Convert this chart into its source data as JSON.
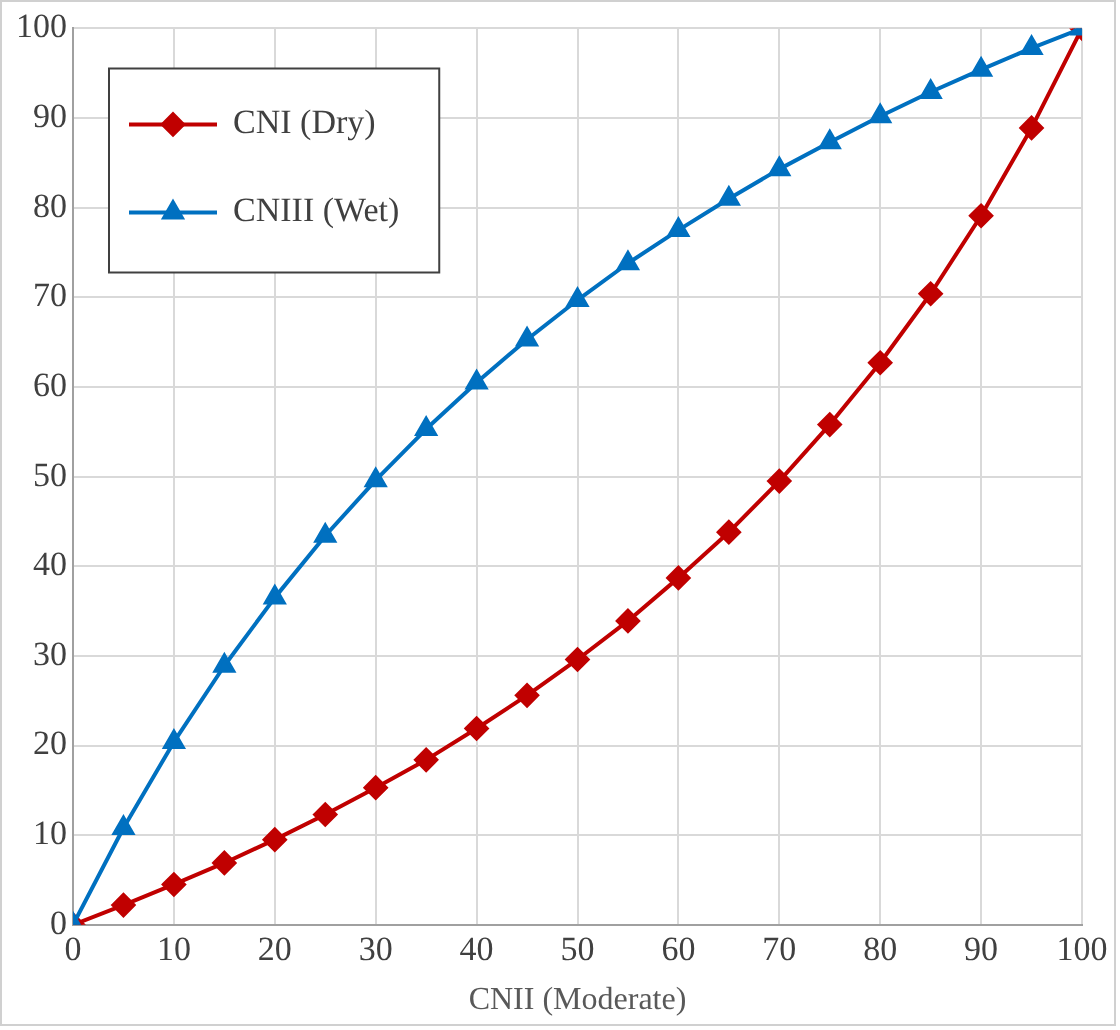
{
  "chart_data": {
    "type": "line",
    "xlabel": "CNII (Moderate)",
    "x": [
      0,
      5,
      10,
      15,
      20,
      25,
      30,
      35,
      40,
      45,
      50,
      55,
      60,
      65,
      70,
      75,
      80,
      85,
      90,
      95,
      100
    ],
    "series": [
      {
        "name": "CNI (Dry)",
        "color": "#c00000",
        "marker": "diamond",
        "values": [
          0,
          2.2,
          4.5,
          6.9,
          9.5,
          12.3,
          15.3,
          18.4,
          21.9,
          25.6,
          29.6,
          33.9,
          38.7,
          43.8,
          49.5,
          55.8,
          62.7,
          70.4,
          79.1,
          88.9,
          100
        ]
      },
      {
        "name": "CNIII (Wet)",
        "color": "#0070c0",
        "marker": "triangle",
        "values": [
          0,
          10.8,
          20.4,
          28.9,
          36.5,
          43.4,
          49.6,
          55.3,
          60.5,
          65.3,
          69.7,
          73.8,
          77.5,
          81.0,
          84.3,
          87.3,
          90.2,
          92.9,
          95.4,
          97.8,
          100
        ]
      }
    ],
    "xlim": [
      0,
      100
    ],
    "xticks": [
      0,
      10,
      20,
      30,
      40,
      50,
      60,
      70,
      80,
      90,
      100
    ],
    "ylim": [
      0,
      100
    ],
    "yticks": [
      0,
      10,
      20,
      30,
      40,
      50,
      60,
      70,
      80,
      90,
      100
    ],
    "grid": true,
    "legend": "top left",
    "line_style": "solid"
  }
}
